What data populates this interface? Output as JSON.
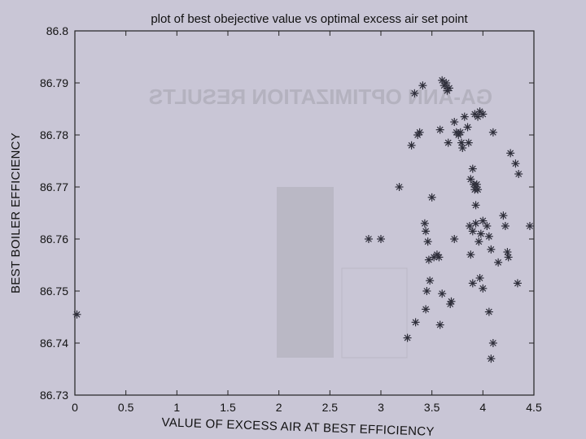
{
  "chart_data": {
    "type": "scatter",
    "title": "plot of best obejective value vs optimal excess air set point",
    "xlabel": "VALUE OF EXCESS AIR AT BEST EFFICIENCY",
    "ylabel": "BEST BOILER EFFICIENCY",
    "xlim": [
      0,
      4.5
    ],
    "ylim": [
      86.73,
      86.8
    ],
    "x_ticks": [
      "0",
      "0.5",
      "1",
      "1.5",
      "2",
      "2.5",
      "3",
      "3.5",
      "4",
      "4.5"
    ],
    "y_ticks": [
      "86.73",
      "86.74",
      "86.75",
      "86.76",
      "86.77",
      "86.78",
      "86.79",
      "86.8"
    ],
    "grid": false,
    "marker": "asterisk",
    "colors": {
      "background": "#c9c6d6",
      "marker": "#2e2e3a",
      "axes": "#222222"
    },
    "points": [
      [
        0.02,
        86.7455
      ],
      [
        2.88,
        86.76
      ],
      [
        3.0,
        86.76
      ],
      [
        3.18,
        86.77
      ],
      [
        3.26,
        86.741
      ],
      [
        3.34,
        86.744
      ],
      [
        3.3,
        86.778
      ],
      [
        3.36,
        86.78
      ],
      [
        3.38,
        86.7805
      ],
      [
        3.33,
        86.788
      ],
      [
        3.41,
        86.7895
      ],
      [
        3.43,
        86.763
      ],
      [
        3.44,
        86.7615
      ],
      [
        3.46,
        86.7595
      ],
      [
        3.47,
        86.756
      ],
      [
        3.45,
        86.75
      ],
      [
        3.44,
        86.7465
      ],
      [
        3.48,
        86.752
      ],
      [
        3.5,
        86.768
      ],
      [
        3.52,
        86.7565
      ],
      [
        3.55,
        86.757
      ],
      [
        3.57,
        86.7565
      ],
      [
        3.58,
        86.7435
      ],
      [
        3.6,
        86.7495
      ],
      [
        3.58,
        86.781
      ],
      [
        3.6,
        86.7905
      ],
      [
        3.62,
        86.7895
      ],
      [
        3.65,
        86.7885
      ],
      [
        3.67,
        86.789
      ],
      [
        3.64,
        86.79
      ],
      [
        3.66,
        86.7785
      ],
      [
        3.68,
        86.7475
      ],
      [
        3.69,
        86.748
      ],
      [
        3.72,
        86.76
      ],
      [
        3.72,
        86.7825
      ],
      [
        3.74,
        86.7805
      ],
      [
        3.76,
        86.78
      ],
      [
        3.78,
        86.7805
      ],
      [
        3.79,
        86.7785
      ],
      [
        3.8,
        86.7775
      ],
      [
        3.82,
        86.7835
      ],
      [
        3.85,
        86.7815
      ],
      [
        3.86,
        86.7785
      ],
      [
        3.88,
        86.7715
      ],
      [
        3.9,
        86.7735
      ],
      [
        3.91,
        86.7705
      ],
      [
        3.92,
        86.7695
      ],
      [
        3.93,
        86.7665
      ],
      [
        3.94,
        86.7705
      ],
      [
        3.95,
        86.7695
      ],
      [
        3.92,
        86.784
      ],
      [
        3.95,
        86.7835
      ],
      [
        3.97,
        86.7845
      ],
      [
        4.0,
        86.784
      ],
      [
        3.88,
        86.757
      ],
      [
        3.87,
        86.7625
      ],
      [
        3.9,
        86.7615
      ],
      [
        3.93,
        86.763
      ],
      [
        3.96,
        86.7595
      ],
      [
        3.98,
        86.761
      ],
      [
        4.0,
        86.7635
      ],
      [
        3.9,
        86.7515
      ],
      [
        4.0,
        86.7505
      ],
      [
        4.04,
        86.7625
      ],
      [
        4.06,
        86.7605
      ],
      [
        4.08,
        86.758
      ],
      [
        3.97,
        86.7525
      ],
      [
        4.1,
        86.7805
      ],
      [
        4.15,
        86.7555
      ],
      [
        4.2,
        86.7645
      ],
      [
        4.22,
        86.7625
      ],
      [
        4.24,
        86.7575
      ],
      [
        4.25,
        86.7565
      ],
      [
        4.27,
        86.7765
      ],
      [
        4.32,
        86.7745
      ],
      [
        4.35,
        86.7725
      ],
      [
        4.06,
        86.746
      ],
      [
        4.1,
        86.74
      ],
      [
        4.08,
        86.737
      ],
      [
        4.34,
        86.7515
      ],
      [
        4.46,
        86.7625
      ]
    ]
  }
}
